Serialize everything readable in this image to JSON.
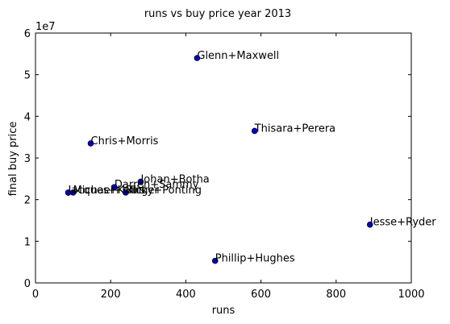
{
  "chart_data": {
    "type": "scatter",
    "title": "runs vs buy price year 2013",
    "xlabel": "runs",
    "ylabel": "final buy price",
    "y_offset_label": "1e7",
    "y_scale_factor": 10000000,
    "xlim": [
      0,
      1000
    ],
    "ylim": [
      0,
      60000000
    ],
    "x_ticks": [
      0,
      200,
      400,
      600,
      800,
      1000
    ],
    "x_tick_labels": [
      "0",
      "200",
      "400",
      "600",
      "800",
      "1000"
    ],
    "y_ticks": [
      0,
      10000000,
      20000000,
      30000000,
      40000000,
      50000000,
      60000000
    ],
    "y_tick_labels": [
      "0",
      "1",
      "2",
      "3",
      "4",
      "5",
      "6"
    ],
    "grid": false,
    "marker_color": "#0000cc",
    "points": [
      {
        "label": "Glenn+Maxwell",
        "x": 430,
        "y": 54000000
      },
      {
        "label": "Thisara+Perera",
        "x": 583,
        "y": 36500000
      },
      {
        "label": "Chris+Morris",
        "x": 147,
        "y": 33500000
      },
      {
        "label": "Johan+Botha",
        "x": 280,
        "y": 24300000
      },
      {
        "label": "Darren+Sammy",
        "x": 210,
        "y": 23000000
      },
      {
        "label": "Ricky+Ponting",
        "x": 240,
        "y": 21700000
      },
      {
        "label": "Michael+Klinger",
        "x": 100,
        "y": 21700000
      },
      {
        "label": "Jacques+Kallis",
        "x": 87,
        "y": 21700000
      },
      {
        "label": "Jesse+Ryder",
        "x": 890,
        "y": 14000000
      },
      {
        "label": "Phillip+Hughes",
        "x": 478,
        "y": 5300000
      }
    ]
  }
}
